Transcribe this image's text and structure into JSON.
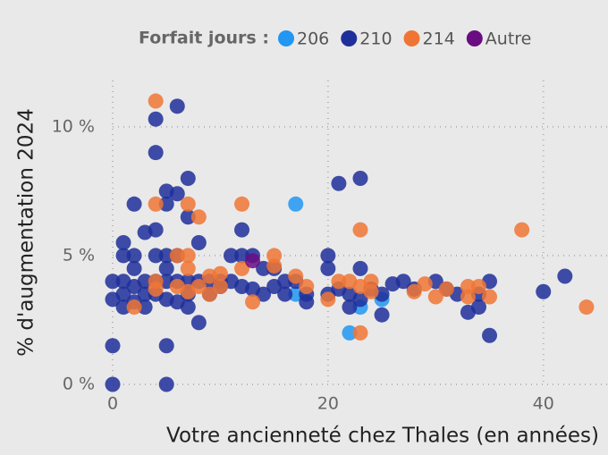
{
  "chart_data": {
    "type": "scatter",
    "legend_title": "Forfait jours :",
    "xlabel": "Votre ancienneté chez Thales (en années)",
    "ylabel": "% d'augmentation 2024",
    "xlim": [
      0,
      46
    ],
    "xticks": [
      0,
      20,
      40
    ],
    "ylim": [
      0,
      11.8
    ],
    "yticks": [
      {
        "value": 0,
        "label": "0 %"
      },
      {
        "value": 5,
        "label": "5 %"
      },
      {
        "value": 10,
        "label": "10 %"
      }
    ],
    "grid": true,
    "series": [
      {
        "name": "206",
        "color": "#2196f3",
        "x": [
          17,
          17,
          22,
          23,
          25
        ],
        "values": [
          7,
          3.5,
          2,
          3,
          3.3
        ]
      },
      {
        "name": "210",
        "color": "#1f2f9a",
        "x": [
          0,
          0,
          0,
          0,
          1,
          1,
          1,
          1,
          1,
          2,
          2,
          2,
          2,
          2,
          3,
          3,
          3,
          3,
          4,
          4,
          4,
          4,
          4,
          4,
          5,
          5,
          5,
          5,
          5,
          5,
          5,
          5,
          6,
          6,
          6,
          6,
          6,
          7,
          7,
          7,
          7,
          7,
          8,
          8,
          8,
          9,
          9,
          10,
          10,
          11,
          11,
          12,
          12,
          12,
          13,
          13,
          14,
          14,
          15,
          15,
          16,
          16,
          17,
          18,
          18,
          20,
          20,
          20,
          21,
          21,
          22,
          22,
          23,
          23,
          23,
          24,
          25,
          25,
          26,
          27,
          28,
          30,
          31,
          32,
          33,
          34,
          34,
          35,
          35,
          40,
          42
        ],
        "values": [
          1.5,
          0,
          4,
          3.3,
          5.5,
          5,
          4,
          3.5,
          3,
          7,
          5,
          4.5,
          3.8,
          3.2,
          5.9,
          4,
          3.5,
          3,
          10.3,
          9,
          6,
          5,
          4,
          3.5,
          7.5,
          7,
          5,
          4.5,
          4,
          3.3,
          1.5,
          0,
          10.8,
          7.4,
          5,
          4,
          3.2,
          8,
          6.5,
          4,
          3.5,
          3,
          5.5,
          4,
          2.4,
          4,
          3.5,
          4,
          3.8,
          5,
          4,
          6,
          5,
          3.8,
          5,
          3.7,
          4.5,
          3.5,
          4.5,
          3.8,
          4,
          3.5,
          4,
          3.5,
          3.2,
          5,
          4.5,
          3.5,
          7.8,
          3.7,
          3,
          3.5,
          8,
          4.5,
          3.3,
          3.7,
          3.5,
          2.7,
          3.9,
          4,
          3.7,
          4,
          3.7,
          3.5,
          2.8,
          3,
          3.5,
          4,
          1.9,
          3.6,
          4.2
        ]
      },
      {
        "name": "214",
        "color": "#f07535",
        "x": [
          2,
          4,
          4,
          4,
          4,
          6,
          6,
          7,
          7,
          7,
          7,
          8,
          8,
          9,
          9,
          10,
          10,
          12,
          12,
          13,
          15,
          15,
          17,
          18,
          20,
          21,
          22,
          23,
          23,
          23,
          24,
          24,
          28,
          29,
          30,
          31,
          33,
          33,
          34,
          35,
          38,
          44
        ],
        "values": [
          3,
          11,
          7,
          4,
          3.7,
          5,
          3.8,
          7,
          5,
          4.5,
          3.6,
          6.5,
          3.8,
          4.2,
          3.5,
          4.3,
          3.8,
          7,
          4.5,
          3.2,
          5,
          4.6,
          4.2,
          3.8,
          3.3,
          4,
          4,
          6,
          3.8,
          2,
          4,
          3.6,
          3.6,
          3.9,
          3.4,
          3.7,
          3.8,
          3.4,
          3.8,
          3.4,
          6,
          3
        ]
      },
      {
        "name": "Autre",
        "color": "#6a0d83",
        "x": [
          13
        ],
        "values": [
          4.8
        ]
      }
    ]
  }
}
